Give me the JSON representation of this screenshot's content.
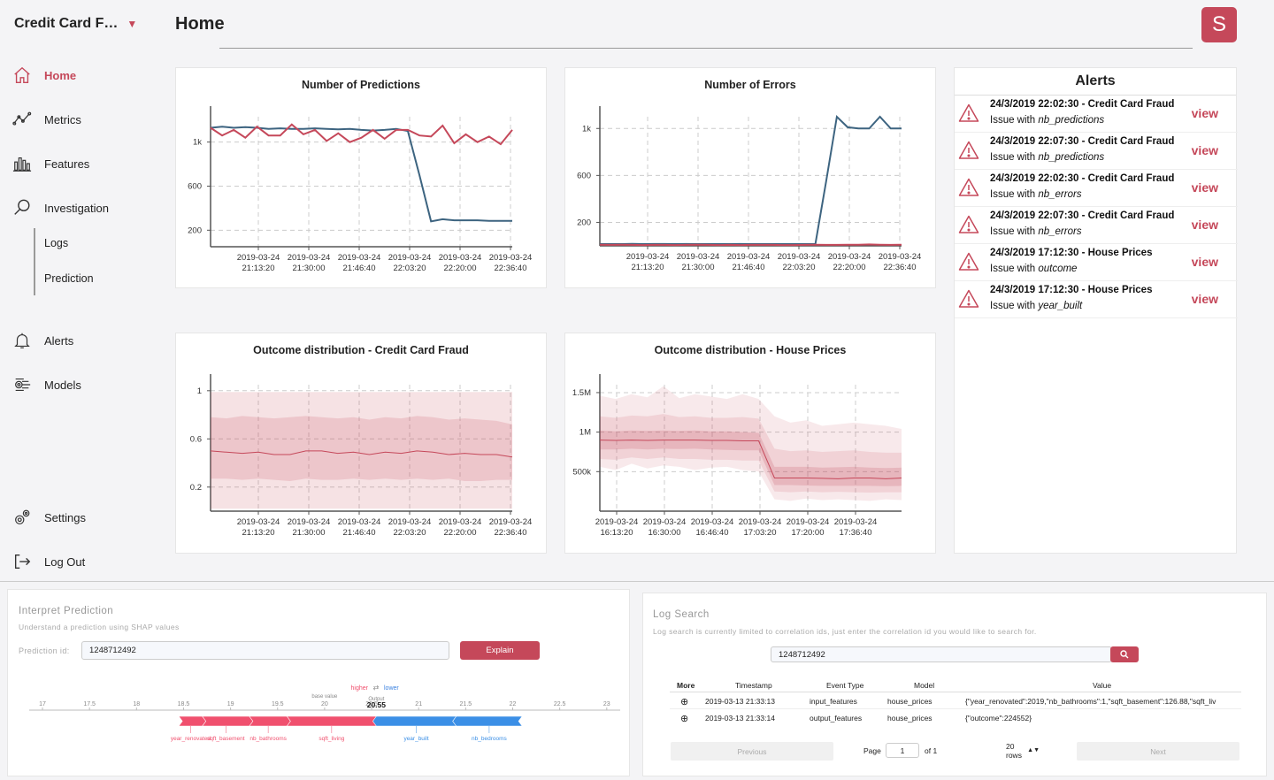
{
  "app": {
    "title": "Credit Card F…",
    "page_title": "Home",
    "avatar_letter": "S"
  },
  "nav": {
    "home": "Home",
    "metrics": "Metrics",
    "features": "Features",
    "investigation": "Investigation",
    "logs": "Logs",
    "prediction": "Prediction",
    "alerts": "Alerts",
    "models": "Models",
    "settings": "Settings",
    "logout": "Log Out"
  },
  "colors": {
    "accent": "#c5485a",
    "blue_series": "#3d6480",
    "red_series": "#c5485a"
  },
  "cards": {
    "predictions_title": "Number of Predictions",
    "errors_title": "Number of Errors",
    "ccf_title": "Outcome distribution - Credit Card Fraud",
    "hp_title": "Outcome distribution - House Prices"
  },
  "chart_data": [
    {
      "type": "line",
      "title": "Number of Predictions",
      "x_ticks": [
        "2019-03-24 21:13:20",
        "2019-03-24 21:30:00",
        "2019-03-24 21:46:40",
        "2019-03-24 22:03:20",
        "2019-03-24 22:20:00",
        "2019-03-24 22:36:40"
      ],
      "y_ticks": [
        "200",
        "600",
        "1k"
      ],
      "ylim": [
        50,
        1230
      ],
      "series": [
        {
          "color": "#3d6480",
          "values": [
            1130,
            1140,
            1130,
            1135,
            1130,
            1120,
            1125,
            1120,
            1120,
            1125,
            1120,
            1115,
            1120,
            1110,
            1105,
            1110,
            1120,
            1100,
            700,
            280,
            300,
            290,
            290,
            290,
            285,
            285,
            285
          ]
        },
        {
          "color": "#c5485a",
          "values": [
            1130,
            1060,
            1110,
            1040,
            1140,
            1060,
            1060,
            1160,
            1070,
            1110,
            1010,
            1080,
            1000,
            1040,
            1110,
            1030,
            1110,
            1110,
            1060,
            1050,
            1150,
            990,
            1070,
            1000,
            1050,
            980,
            1110
          ]
        }
      ]
    },
    {
      "type": "line",
      "title": "Number of Errors",
      "x_ticks": [
        "2019-03-24 21:13:20",
        "2019-03-24 21:30:00",
        "2019-03-24 21:46:40",
        "2019-03-24 22:03:20",
        "2019-03-24 22:20:00",
        "2019-03-24 22:36:40"
      ],
      "y_ticks": [
        "200",
        "600",
        "1k"
      ],
      "ylim": [
        0,
        1100
      ],
      "series": [
        {
          "color": "#3d6480",
          "values": [
            15,
            15,
            15,
            17,
            15,
            16,
            16,
            15,
            16,
            15,
            15,
            15,
            15,
            16,
            15,
            15,
            15,
            15,
            15,
            15,
            15,
            550,
            1100,
            1010,
            1000,
            1000,
            1100,
            1000,
            1000
          ]
        },
        {
          "color": "#c5485a",
          "values": [
            10,
            8,
            9,
            8,
            7,
            8,
            8,
            7,
            8,
            9,
            8,
            7,
            8,
            7,
            8,
            8,
            8,
            7,
            7,
            8,
            9,
            8,
            8,
            10,
            9,
            12,
            10,
            8,
            10
          ]
        }
      ]
    },
    {
      "type": "area",
      "title": "Outcome distribution - Credit Card Fraud",
      "x_ticks": [
        "2019-03-24 21:13:20",
        "2019-03-24 21:30:00",
        "2019-03-24 21:46:40",
        "2019-03-24 22:03:20",
        "2019-03-24 22:20:00",
        "2019-03-24 22:36:40"
      ],
      "y_ticks": [
        "0.2",
        "0.6",
        "1"
      ],
      "ylim": [
        0,
        1.05
      ],
      "median": [
        0.5,
        0.49,
        0.48,
        0.49,
        0.47,
        0.47,
        0.5,
        0.5,
        0.48,
        0.49,
        0.47,
        0.49,
        0.48,
        0.5,
        0.49,
        0.47,
        0.48,
        0.47,
        0.47,
        0.45
      ],
      "inner_band": [
        [
          0.78,
          0.27
        ],
        [
          0.77,
          0.27
        ],
        [
          0.79,
          0.26
        ],
        [
          0.78,
          0.27
        ],
        [
          0.77,
          0.26
        ],
        [
          0.78,
          0.25
        ],
        [
          0.79,
          0.27
        ],
        [
          0.78,
          0.26
        ],
        [
          0.77,
          0.26
        ],
        [
          0.78,
          0.27
        ],
        [
          0.76,
          0.26
        ],
        [
          0.78,
          0.27
        ],
        [
          0.77,
          0.26
        ],
        [
          0.79,
          0.27
        ],
        [
          0.78,
          0.26
        ],
        [
          0.76,
          0.27
        ],
        [
          0.77,
          0.25
        ],
        [
          0.76,
          0.25
        ],
        [
          0.75,
          0.26
        ],
        [
          0.72,
          0.26
        ]
      ],
      "outer_band": [
        0.99,
        0.02
      ]
    },
    {
      "type": "area",
      "title": "Outcome distribution - House Prices",
      "x_ticks": [
        "2019-03-24 16:13:20",
        "2019-03-24 16:30:00",
        "2019-03-24 16:46:40",
        "2019-03-24 17:03:20",
        "2019-03-24 17:20:00",
        "2019-03-24 17:36:40"
      ],
      "y_ticks": [
        "500k",
        "1M",
        "1.5M"
      ],
      "ylim": [
        0,
        1600000
      ],
      "median": [
        900000,
        895000,
        900000,
        895000,
        900000,
        900000,
        900000,
        895000,
        895000,
        890000,
        890000,
        420000,
        420000,
        420000,
        415000,
        410000,
        420000,
        420000,
        410000,
        420000
      ],
      "inner_band": [
        [
          1020000,
          780000
        ],
        [
          1010000,
          780000
        ],
        [
          1020000,
          790000
        ],
        [
          1015000,
          780000
        ],
        [
          1020000,
          790000
        ],
        [
          1015000,
          785000
        ],
        [
          1020000,
          790000
        ],
        [
          1010000,
          780000
        ],
        [
          1010000,
          775000
        ],
        [
          1000000,
          770000
        ],
        [
          990000,
          770000
        ],
        [
          560000,
          330000
        ],
        [
          560000,
          330000
        ],
        [
          560000,
          325000
        ],
        [
          550000,
          320000
        ],
        [
          555000,
          320000
        ],
        [
          560000,
          320000
        ],
        [
          550000,
          320000
        ],
        [
          545000,
          315000
        ],
        [
          550000,
          320000
        ]
      ],
      "outer_band_top": [
        1460000,
        1420000,
        1480000,
        1440000,
        1580000,
        1430000,
        1480000,
        1450000,
        1420000,
        1480000,
        1420000,
        1200000,
        1120000,
        1150000,
        1080000,
        1100000,
        1120000,
        1100000,
        1080000,
        1040000
      ],
      "outer_band_bottom": [
        560000,
        520000,
        600000,
        540000,
        580000,
        560000,
        520000,
        550000,
        560000,
        520000,
        500000,
        150000,
        130000,
        160000,
        140000,
        150000,
        140000,
        130000,
        150000,
        140000
      ],
      "mid_band_top": [
        1200000,
        1180000,
        1210000,
        1200000,
        1230000,
        1190000,
        1200000,
        1180000,
        1180000,
        1190000,
        1170000,
        790000,
        760000,
        770000,
        750000,
        760000,
        770000,
        750000,
        740000,
        740000
      ],
      "mid_band_bottom": [
        660000,
        650000,
        680000,
        660000,
        680000,
        660000,
        660000,
        650000,
        650000,
        640000,
        640000,
        250000,
        240000,
        250000,
        240000,
        245000,
        240000,
        235000,
        240000,
        240000
      ]
    },
    {
      "type": "bar",
      "title": "SHAP force plot",
      "axis_ticks": [
        "17",
        "17.5",
        "18",
        "18.5",
        "19",
        "19.5",
        "20",
        "20.5",
        "21",
        "21.5",
        "22",
        "22.5",
        "23"
      ],
      "base_value": 20,
      "output": 20.55,
      "segments": [
        {
          "name": "year_renovated",
          "from": 18.45,
          "to": 18.7,
          "direction": "higher"
        },
        {
          "name": "sqft_basement",
          "from": 18.7,
          "to": 19.2,
          "direction": "higher"
        },
        {
          "name": "nb_bathrooms",
          "from": 19.2,
          "to": 19.6,
          "direction": "higher"
        },
        {
          "name": "sqft_living",
          "from": 19.6,
          "to": 20.55,
          "direction": "higher"
        },
        {
          "name": "year_built",
          "from": 20.55,
          "to": 21.4,
          "direction": "lower"
        },
        {
          "name": "nb_bedrooms",
          "from": 21.4,
          "to": 22.1,
          "direction": "lower"
        }
      ]
    }
  ],
  "alerts": {
    "title": "Alerts",
    "view_label": "view",
    "items": [
      {
        "title": "24/3/2019 22:02:30 - Credit Card Fraud",
        "prefix": "Issue with ",
        "feature": "nb_predictions"
      },
      {
        "title": "24/3/2019 22:07:30 - Credit Card Fraud",
        "prefix": "Issue with ",
        "feature": "nb_predictions"
      },
      {
        "title": "24/3/2019 22:02:30 - Credit Card Fraud",
        "prefix": "Issue with ",
        "feature": "nb_errors"
      },
      {
        "title": "24/3/2019 22:07:30 - Credit Card Fraud",
        "prefix": "Issue with ",
        "feature": "nb_errors"
      },
      {
        "title": "24/3/2019 17:12:30 - House Prices",
        "prefix": "Issue with ",
        "feature": "outcome"
      },
      {
        "title": "24/3/2019 17:12:30 - House Prices",
        "prefix": "Issue with ",
        "feature": "year_built"
      }
    ]
  },
  "interpret": {
    "title": "Interpret Prediction",
    "subtitle": "Understand a prediction using SHAP values",
    "id_label": "Prediction id:",
    "id_value": "1248712492",
    "explain_label": "Explain",
    "higher_label": "higher",
    "lower_label": "lower",
    "base_value_label": "base value",
    "output_label": "Output",
    "output_value": "20.55"
  },
  "logsearch": {
    "title": "Log Search",
    "subtitle": "Log search is currently limited to correlation ids, just enter the correlation id you would like to search for.",
    "query": "1248712492",
    "columns": [
      "More",
      "Timestamp",
      "Event Type",
      "Model",
      "Value"
    ],
    "rows": [
      {
        "more": "⊕",
        "timestamp": "2019-03-13 21:33:13",
        "event_type": "input_features",
        "model": "house_prices",
        "value": "{\"year_renovated\":2019,\"nb_bathrooms\":1,\"sqft_basement\":126.88,\"sqft_liv"
      },
      {
        "more": "⊕",
        "timestamp": "2019-03-13 21:33:14",
        "event_type": "output_features",
        "model": "house_prices",
        "value": "{\"outcome\":224552}"
      }
    ],
    "prev_label": "Previous",
    "next_label": "Next",
    "page_label": "Page",
    "page_value": "1",
    "of_label": "of 1",
    "rows_label": "20 rows"
  }
}
